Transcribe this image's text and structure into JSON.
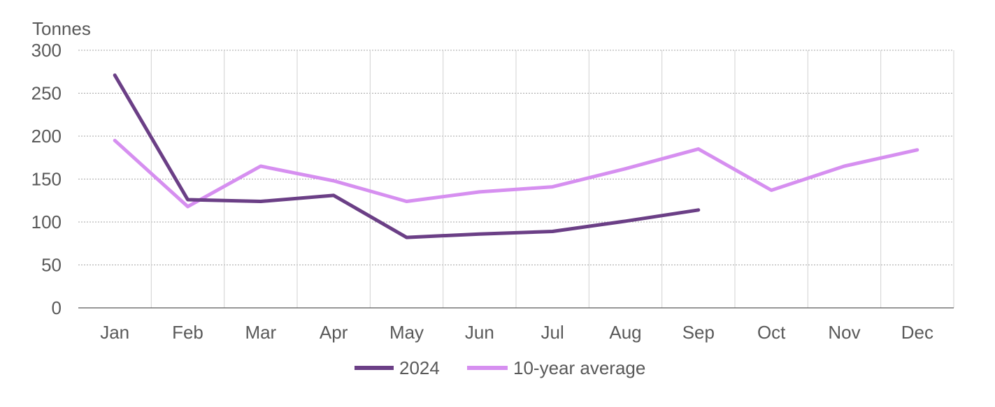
{
  "chart_data": {
    "type": "line",
    "ylabel": "Tonnes",
    "ylim": [
      0,
      300
    ],
    "yticks": [
      0,
      50,
      100,
      150,
      200,
      250,
      300
    ],
    "categories": [
      "Jan",
      "Feb",
      "Mar",
      "Apr",
      "May",
      "Jun",
      "Jul",
      "Aug",
      "Sep",
      "Oct",
      "Nov",
      "Dec"
    ],
    "grid": true,
    "legend_position": "bottom",
    "series": [
      {
        "name": "2024",
        "color": "#6b3f86",
        "values": [
          271,
          126,
          124,
          131,
          82,
          86,
          89,
          101,
          114,
          null,
          null,
          null
        ]
      },
      {
        "name": "10-year average",
        "color": "#d68ff0",
        "values": [
          195,
          118,
          165,
          148,
          124,
          135,
          141,
          162,
          185,
          137,
          165,
          184
        ]
      }
    ]
  }
}
